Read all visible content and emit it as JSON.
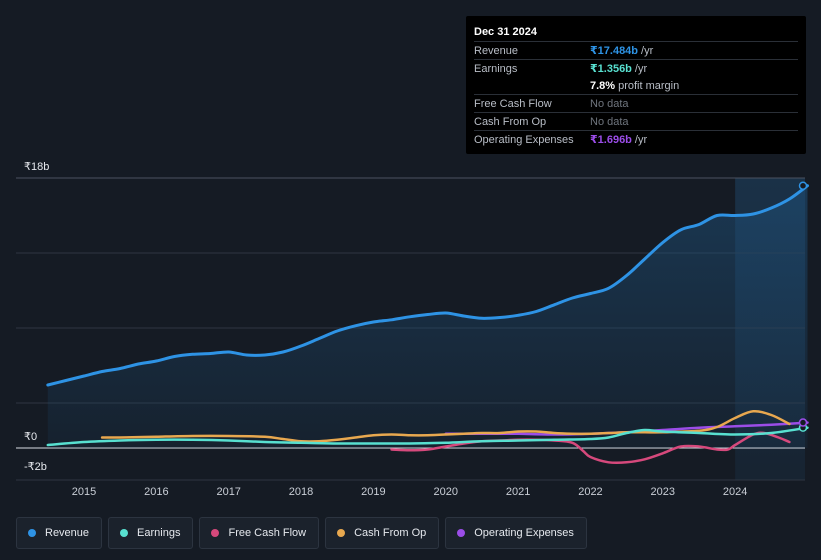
{
  "tooltip": {
    "date": "Dec 31 2024",
    "rows": [
      {
        "label": "Revenue",
        "value": "₹17.484b",
        "unit": "/yr",
        "color": "#2e93e5"
      },
      {
        "label": "Earnings",
        "value": "₹1.356b",
        "unit": "/yr",
        "color": "#58e0d0"
      },
      {
        "label": "",
        "value": "7.8%",
        "unit": "profit margin",
        "color": "#ffffff"
      },
      {
        "label": "Free Cash Flow",
        "value": "No data",
        "unit": "",
        "color": "#6f757e"
      },
      {
        "label": "Cash From Op",
        "value": "No data",
        "unit": "",
        "color": "#6f757e"
      },
      {
        "label": "Operating Expenses",
        "value": "₹1.696b",
        "unit": "/yr",
        "color": "#9b4de8"
      }
    ]
  },
  "legend": [
    {
      "label": "Revenue",
      "color": "#2e93e5"
    },
    {
      "label": "Earnings",
      "color": "#58e0d0"
    },
    {
      "label": "Free Cash Flow",
      "color": "#d6497c"
    },
    {
      "label": "Cash From Op",
      "color": "#e8a84f"
    },
    {
      "label": "Operating Expenses",
      "color": "#9b4de8"
    }
  ],
  "chart_data": {
    "type": "line",
    "title": "",
    "xlabel": "",
    "ylabel": "",
    "currency": "₹",
    "y_tick_labels": [
      "₹18b",
      "₹0",
      "-₹2b"
    ],
    "y_ticks": [
      18,
      0,
      -2
    ],
    "ylim": [
      -2,
      18
    ],
    "x_ticks": [
      2015,
      2016,
      2017,
      2018,
      2019,
      2020,
      2021,
      2022,
      2023,
      2024
    ],
    "xlim": [
      2014.48,
      2025.0
    ],
    "forecast_start": 2024.0,
    "series": [
      {
        "name": "Revenue",
        "color": "#2e93e5",
        "fill": true,
        "points": [
          [
            2014.5,
            4.2
          ],
          [
            2014.75,
            4.5
          ],
          [
            2015.0,
            4.8
          ],
          [
            2015.25,
            5.1
          ],
          [
            2015.5,
            5.3
          ],
          [
            2015.75,
            5.6
          ],
          [
            2016.0,
            5.8
          ],
          [
            2016.25,
            6.1
          ],
          [
            2016.5,
            6.25
          ],
          [
            2016.75,
            6.3
          ],
          [
            2017.0,
            6.4
          ],
          [
            2017.25,
            6.2
          ],
          [
            2017.5,
            6.2
          ],
          [
            2017.75,
            6.4
          ],
          [
            2018.0,
            6.8
          ],
          [
            2018.25,
            7.3
          ],
          [
            2018.5,
            7.8
          ],
          [
            2018.75,
            8.15
          ],
          [
            2019.0,
            8.4
          ],
          [
            2019.25,
            8.55
          ],
          [
            2019.5,
            8.75
          ],
          [
            2019.75,
            8.9
          ],
          [
            2020.0,
            9.0
          ],
          [
            2020.25,
            8.8
          ],
          [
            2020.5,
            8.65
          ],
          [
            2020.75,
            8.7
          ],
          [
            2021.0,
            8.85
          ],
          [
            2021.25,
            9.1
          ],
          [
            2021.5,
            9.55
          ],
          [
            2021.75,
            10.0
          ],
          [
            2022.0,
            10.3
          ],
          [
            2022.25,
            10.65
          ],
          [
            2022.5,
            11.5
          ],
          [
            2022.75,
            12.6
          ],
          [
            2023.0,
            13.7
          ],
          [
            2023.25,
            14.55
          ],
          [
            2023.5,
            14.9
          ],
          [
            2023.75,
            15.5
          ],
          [
            2024.0,
            15.5
          ],
          [
            2024.25,
            15.6
          ],
          [
            2024.5,
            16.0
          ],
          [
            2024.75,
            16.6
          ],
          [
            2025.0,
            17.484
          ]
        ]
      },
      {
        "name": "Earnings",
        "color": "#58e0d0",
        "fill": false,
        "points": [
          [
            2014.5,
            0.2
          ],
          [
            2015.0,
            0.4
          ],
          [
            2015.5,
            0.5
          ],
          [
            2016.0,
            0.55
          ],
          [
            2016.5,
            0.55
          ],
          [
            2017.0,
            0.5
          ],
          [
            2017.5,
            0.4
          ],
          [
            2018.0,
            0.35
          ],
          [
            2018.5,
            0.3
          ],
          [
            2019.0,
            0.3
          ],
          [
            2019.5,
            0.3
          ],
          [
            2020.0,
            0.35
          ],
          [
            2020.5,
            0.45
          ],
          [
            2021.0,
            0.5
          ],
          [
            2021.5,
            0.55
          ],
          [
            2022.0,
            0.6
          ],
          [
            2022.25,
            0.7
          ],
          [
            2022.5,
            1.0
          ],
          [
            2022.75,
            1.2
          ],
          [
            2023.0,
            1.1
          ],
          [
            2023.5,
            1.0
          ],
          [
            2024.0,
            0.9
          ],
          [
            2024.5,
            1.0
          ],
          [
            2025.0,
            1.356
          ]
        ]
      },
      {
        "name": "Free Cash Flow",
        "color": "#d6497c",
        "fill": false,
        "points": [
          [
            2019.25,
            -0.1
          ],
          [
            2019.5,
            -0.15
          ],
          [
            2019.75,
            -0.1
          ],
          [
            2020.0,
            0.1
          ],
          [
            2020.25,
            0.3
          ],
          [
            2020.5,
            0.45
          ],
          [
            2020.75,
            0.5
          ],
          [
            2021.0,
            0.55
          ],
          [
            2021.25,
            0.55
          ],
          [
            2021.5,
            0.5
          ],
          [
            2021.75,
            0.35
          ],
          [
            2021.9,
            -0.2
          ],
          [
            2022.0,
            -0.6
          ],
          [
            2022.25,
            -0.95
          ],
          [
            2022.5,
            -0.95
          ],
          [
            2022.75,
            -0.75
          ],
          [
            2023.0,
            -0.35
          ],
          [
            2023.25,
            0.1
          ],
          [
            2023.5,
            0.1
          ],
          [
            2023.75,
            -0.1
          ],
          [
            2023.9,
            -0.1
          ],
          [
            2024.0,
            0.2
          ],
          [
            2024.25,
            0.9
          ],
          [
            2024.4,
            1.0
          ],
          [
            2024.6,
            0.7
          ],
          [
            2024.75,
            0.4
          ]
        ]
      },
      {
        "name": "Cash From Op",
        "color": "#e8a84f",
        "fill": false,
        "points": [
          [
            2015.25,
            0.7
          ],
          [
            2015.5,
            0.7
          ],
          [
            2016.0,
            0.75
          ],
          [
            2016.5,
            0.8
          ],
          [
            2017.0,
            0.8
          ],
          [
            2017.5,
            0.75
          ],
          [
            2017.75,
            0.6
          ],
          [
            2018.0,
            0.45
          ],
          [
            2018.25,
            0.45
          ],
          [
            2018.5,
            0.55
          ],
          [
            2018.75,
            0.7
          ],
          [
            2019.0,
            0.85
          ],
          [
            2019.25,
            0.9
          ],
          [
            2019.5,
            0.85
          ],
          [
            2019.75,
            0.85
          ],
          [
            2020.0,
            0.9
          ],
          [
            2020.25,
            0.95
          ],
          [
            2020.5,
            1.0
          ],
          [
            2020.75,
            1.0
          ],
          [
            2021.0,
            1.1
          ],
          [
            2021.25,
            1.1
          ],
          [
            2021.5,
            1.0
          ],
          [
            2021.75,
            0.95
          ],
          [
            2022.0,
            0.95
          ],
          [
            2022.25,
            1.0
          ],
          [
            2022.5,
            1.05
          ],
          [
            2022.75,
            1.05
          ],
          [
            2023.0,
            1.05
          ],
          [
            2023.5,
            1.15
          ],
          [
            2023.75,
            1.4
          ],
          [
            2024.0,
            2.0
          ],
          [
            2024.25,
            2.45
          ],
          [
            2024.5,
            2.2
          ],
          [
            2024.75,
            1.6
          ]
        ]
      },
      {
        "name": "Operating Expenses",
        "color": "#9b4de8",
        "fill": false,
        "points": [
          [
            2020.0,
            0.95
          ],
          [
            2020.25,
            0.95
          ],
          [
            2020.5,
            0.95
          ],
          [
            2020.75,
            0.95
          ],
          [
            2021.0,
            0.95
          ],
          [
            2021.5,
            0.9
          ],
          [
            2022.0,
            0.95
          ],
          [
            2022.5,
            1.05
          ],
          [
            2023.0,
            1.2
          ],
          [
            2023.5,
            1.35
          ],
          [
            2024.0,
            1.45
          ],
          [
            2024.5,
            1.55
          ],
          [
            2025.0,
            1.696
          ]
        ]
      }
    ]
  }
}
